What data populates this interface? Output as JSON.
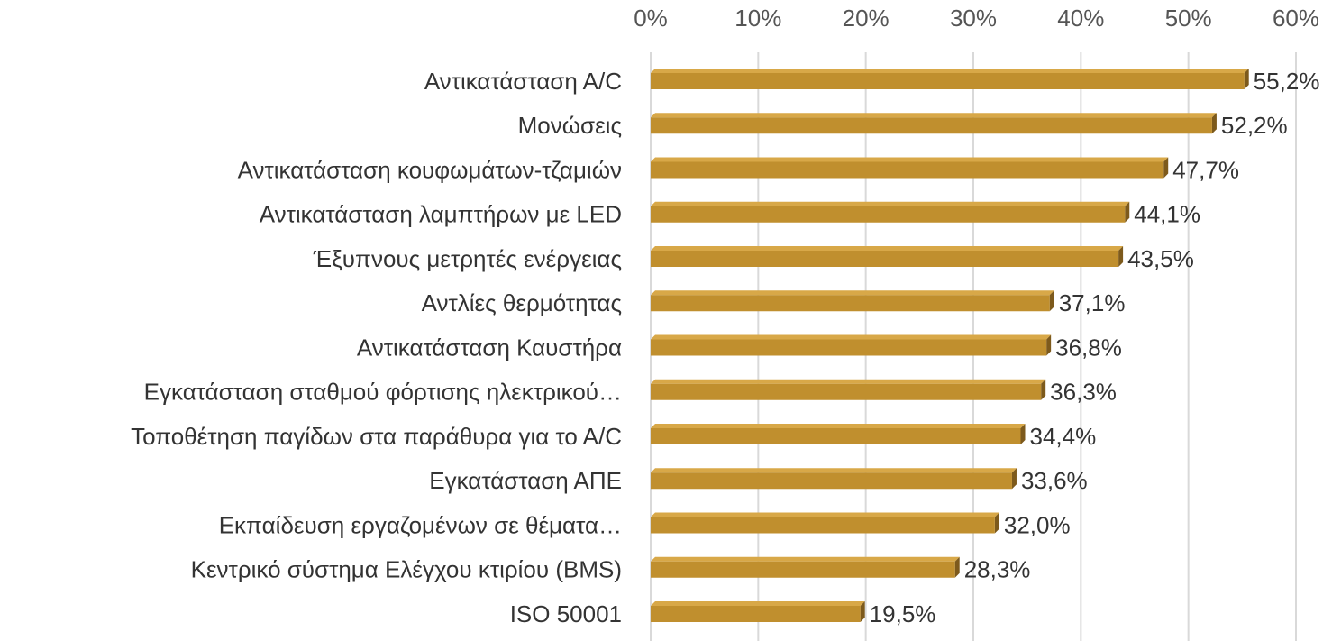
{
  "chart_data": {
    "type": "bar",
    "orientation": "horizontal",
    "categories": [
      "Αντικατάσταση Α/C",
      "Μονώσεις",
      "Αντικατάσταση κουφωμάτων-τζαμιών",
      "Αντικατάσταση λαμπτήρων με LED",
      "Έξυπνους μετρητές ενέργειας",
      "Αντλίες θερμότητας",
      "Αντικατάσταση  Καυστήρα",
      "Εγκατάσταση σταθμού φόρτισης ηλεκτρικού…",
      "Τοποθέτηση παγίδων στα παράθυρα για το Α/C",
      "Εγκατάσταση ΑΠΕ",
      "Εκπαίδευση εργαζομένων σε θέματα…",
      "Κεντρικό σύστημα Ελέγχου κτιρίου (BMS)",
      "ISO 50001"
    ],
    "values": [
      55.2,
      52.2,
      47.7,
      44.1,
      43.5,
      37.1,
      36.8,
      36.3,
      34.4,
      33.6,
      32.0,
      28.3,
      19.5
    ],
    "value_labels": [
      "55,2%",
      "52,2%",
      "47,7%",
      "44,1%",
      "43,5%",
      "37,1%",
      "36,8%",
      "36,3%",
      "34,4%",
      "33,6%",
      "32,0%",
      "28,3%",
      "19,5%"
    ],
    "color": "#c08f2e",
    "xlim": [
      0,
      60
    ],
    "xticks": [
      {
        "value": 0,
        "label": "0%"
      },
      {
        "value": 10,
        "label": "10%"
      },
      {
        "value": 20,
        "label": "20%"
      },
      {
        "value": 30,
        "label": "30%"
      },
      {
        "value": 40,
        "label": "40%"
      },
      {
        "value": 50,
        "label": "50%"
      },
      {
        "value": 60,
        "label": "60%"
      }
    ],
    "grid": true
  }
}
